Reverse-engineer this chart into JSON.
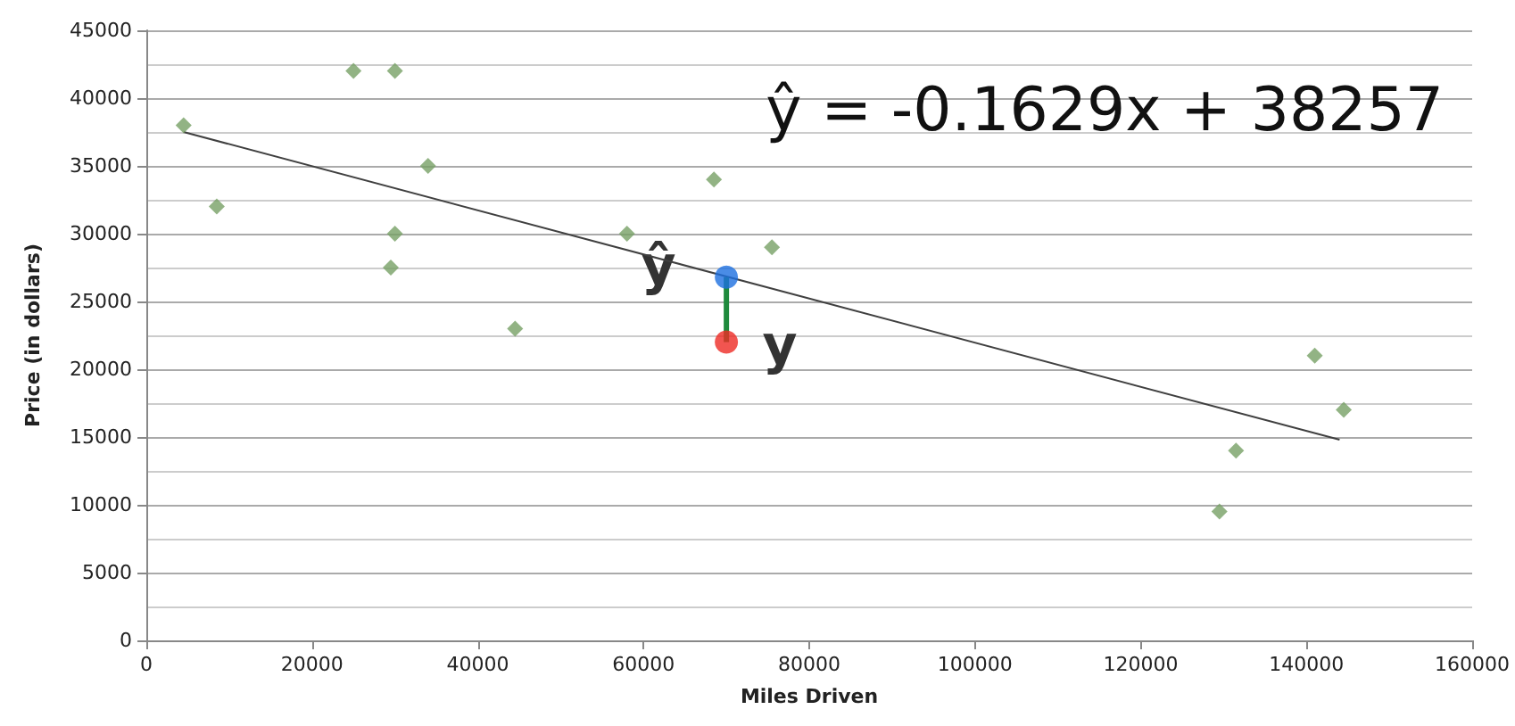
{
  "chart_data": {
    "type": "scatter",
    "xlabel": "Miles Driven",
    "ylabel": "Price (in dollars)",
    "annotations": [
      "ŷ = -0.1629x + 38257",
      {
        "text": "ŷ",
        "x": 70000,
        "y": 26800
      },
      {
        "text": "y",
        "x": 70000,
        "y": 22000
      }
    ],
    "series": [
      {
        "color": "#77a065",
        "marker": "diamond",
        "x": [
          4500,
          8500,
          25000,
          30000,
          34000,
          30000,
          29500,
          44500,
          58000,
          68500,
          75500,
          131500,
          129500,
          141000,
          144500
        ],
        "values": [
          38000,
          32000,
          42000,
          42000,
          35000,
          30000,
          27500,
          23000,
          30000,
          34000,
          29000,
          14000,
          9500,
          21000,
          17000
        ]
      },
      {
        "type": "line",
        "color": "#404040",
        "marker": "none",
        "x": [
          4500,
          144000
        ],
        "values": [
          37500,
          14800
        ]
      },
      {
        "type": "line",
        "color": "#1e8a3c",
        "marker": "none",
        "x": [
          70000,
          70000
        ],
        "values": [
          22000,
          26800
        ]
      },
      {
        "color": "#ee2a24",
        "marker": "circle",
        "x": [
          70000
        ],
        "values": [
          22000
        ]
      },
      {
        "color": "#1d6fe0",
        "marker": "circle",
        "x": [
          70000
        ],
        "values": [
          26800
        ]
      }
    ],
    "xlim": [
      0,
      160000
    ],
    "xticks": [
      0,
      20000,
      40000,
      60000,
      80000,
      100000,
      120000,
      140000,
      160000
    ],
    "ylim": [
      0,
      45000
    ],
    "yticks": [
      0,
      5000,
      10000,
      15000,
      20000,
      25000,
      30000,
      35000,
      40000,
      45000
    ],
    "grid": "y"
  }
}
